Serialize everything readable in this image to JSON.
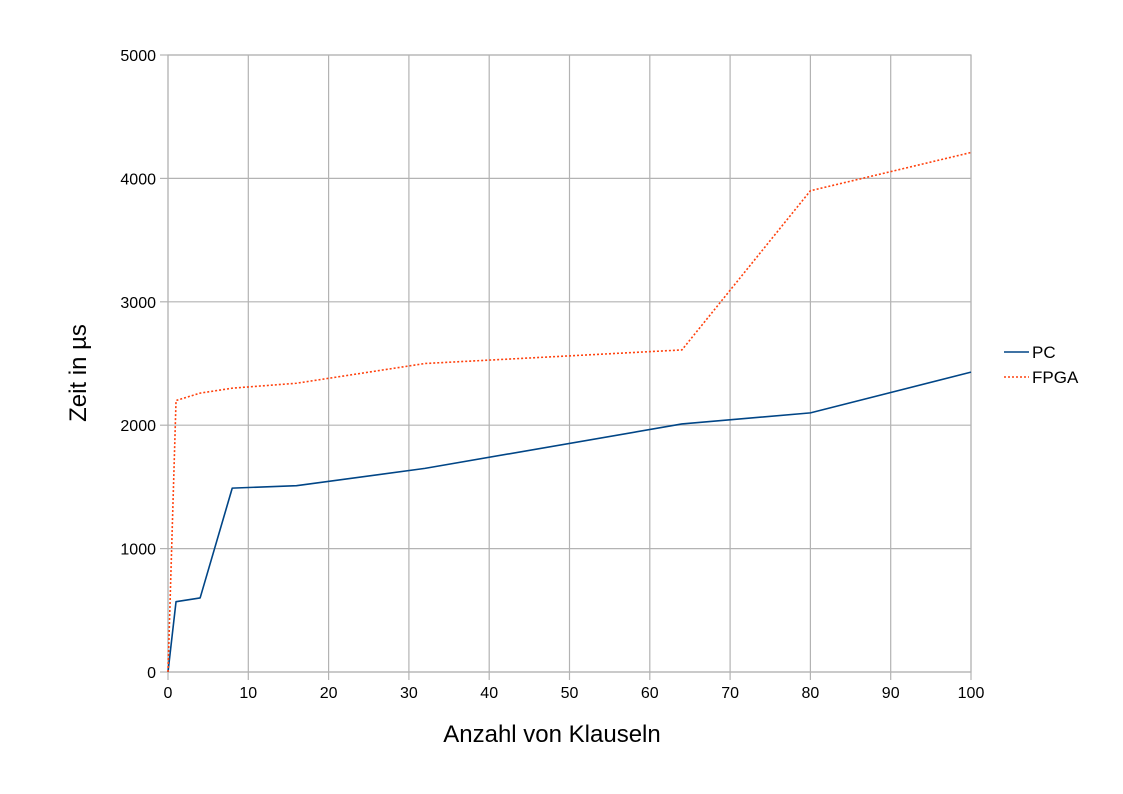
{
  "chart_data": {
    "type": "line",
    "title": "",
    "xlabel": "Anzahl von Klauseln",
    "ylabel": "Zeit in µs",
    "xlim": [
      0,
      100
    ],
    "ylim": [
      0,
      5000
    ],
    "x_ticks": [
      0,
      10,
      20,
      30,
      40,
      50,
      60,
      70,
      80,
      90,
      100
    ],
    "y_ticks": [
      0,
      1000,
      2000,
      3000,
      4000,
      5000
    ],
    "x_tick_labels": [
      "0",
      "10",
      "20",
      "30",
      "40",
      "50",
      "60",
      "70",
      "80",
      "90",
      "100"
    ],
    "y_tick_labels": [
      "0",
      "1000",
      "2000",
      "3000",
      "4000",
      "5000"
    ],
    "grid": true,
    "legend_position": "right",
    "series": [
      {
        "name": "PC",
        "color": "#004586",
        "line_style": "solid",
        "points": [
          [
            0,
            0
          ],
          [
            1,
            570
          ],
          [
            4,
            600
          ],
          [
            8,
            1490
          ],
          [
            16,
            1510
          ],
          [
            32,
            1650
          ],
          [
            64,
            2010
          ],
          [
            80,
            2100
          ],
          [
            100,
            2430
          ]
        ]
      },
      {
        "name": "FPGA",
        "color": "#ff420e",
        "line_style": "dotted",
        "points": [
          [
            0,
            0
          ],
          [
            1,
            2200
          ],
          [
            4,
            2260
          ],
          [
            8,
            2300
          ],
          [
            16,
            2340
          ],
          [
            32,
            2500
          ],
          [
            64,
            2610
          ],
          [
            80,
            3900
          ],
          [
            100,
            4210
          ]
        ]
      }
    ]
  }
}
